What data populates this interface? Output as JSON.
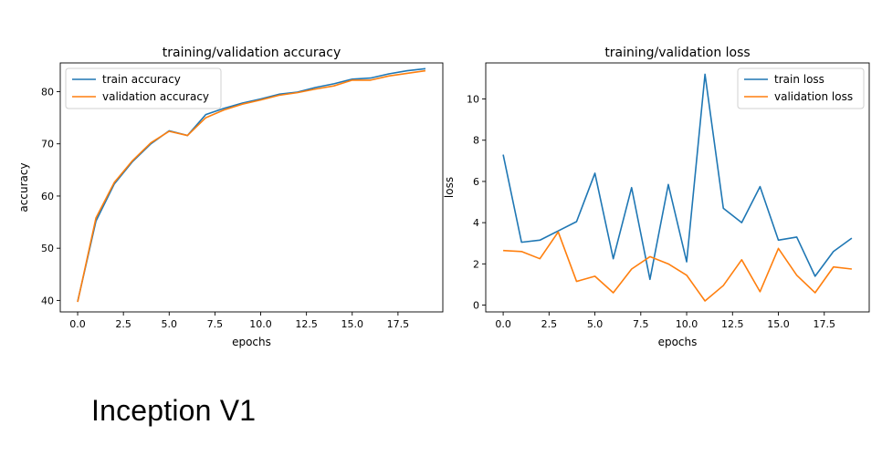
{
  "chart_data": [
    {
      "type": "line",
      "title": "training/validation accuracy",
      "xlabel": "epochs",
      "ylabel": "accuracy",
      "x": [
        0,
        1,
        2,
        3,
        4,
        5,
        6,
        7,
        8,
        9,
        10,
        11,
        12,
        13,
        14,
        15,
        16,
        17,
        18,
        19
      ],
      "xlim": [
        -0.95,
        19.95
      ],
      "ylim": [
        37.8,
        85.5
      ],
      "xticks": [
        0.0,
        2.5,
        5.0,
        7.5,
        10.0,
        12.5,
        15.0,
        17.5
      ],
      "xtick_labels": [
        "0.0",
        "2.5",
        "5.0",
        "7.5",
        "10.0",
        "12.5",
        "15.0",
        "17.5"
      ],
      "yticks": [
        40,
        50,
        60,
        70,
        80
      ],
      "ytick_labels": [
        "40",
        "50",
        "60",
        "70",
        "80"
      ],
      "legend_position": "top-left",
      "series": [
        {
          "name": "train accuracy",
          "color": "#1f77b4",
          "values": [
            39.8,
            55.2,
            62.3,
            66.6,
            70.0,
            72.5,
            71.6,
            75.6,
            76.8,
            77.8,
            78.6,
            79.5,
            79.9,
            80.8,
            81.5,
            82.4,
            82.6,
            83.4,
            84.0,
            84.4
          ]
        },
        {
          "name": "validation accuracy",
          "color": "#ff7f0e",
          "values": [
            39.7,
            55.8,
            62.6,
            66.8,
            70.2,
            72.4,
            71.6,
            75.0,
            76.5,
            77.6,
            78.4,
            79.3,
            79.8,
            80.5,
            81.1,
            82.2,
            82.2,
            83.0,
            83.5,
            84.0
          ]
        }
      ]
    },
    {
      "type": "line",
      "title": "training/validation loss",
      "xlabel": "epochs",
      "ylabel": "loss",
      "x": [
        0,
        1,
        2,
        3,
        4,
        5,
        6,
        7,
        8,
        9,
        10,
        11,
        12,
        13,
        14,
        15,
        16,
        17,
        18,
        19
      ],
      "xlim": [
        -0.95,
        19.95
      ],
      "ylim": [
        -0.33,
        11.75
      ],
      "xticks": [
        0.0,
        2.5,
        5.0,
        7.5,
        10.0,
        12.5,
        15.0,
        17.5
      ],
      "xtick_labels": [
        "0.0",
        "2.5",
        "5.0",
        "7.5",
        "10.0",
        "12.5",
        "15.0",
        "17.5"
      ],
      "yticks": [
        0,
        2,
        4,
        6,
        8,
        10
      ],
      "ytick_labels": [
        "0",
        "2",
        "4",
        "6",
        "8",
        "10"
      ],
      "legend_position": "top-right",
      "series": [
        {
          "name": "train loss",
          "color": "#1f77b4",
          "values": [
            7.3,
            3.05,
            3.15,
            3.6,
            4.05,
            6.4,
            2.25,
            5.7,
            1.25,
            5.85,
            2.1,
            11.2,
            4.7,
            4.0,
            5.75,
            3.15,
            3.3,
            1.4,
            2.6,
            3.25
          ]
        },
        {
          "name": "validation loss",
          "color": "#ff7f0e",
          "values": [
            2.65,
            2.6,
            2.25,
            3.55,
            1.15,
            1.4,
            0.6,
            1.75,
            2.35,
            2.0,
            1.45,
            0.2,
            0.95,
            2.2,
            0.65,
            2.75,
            1.45,
            0.6,
            1.85,
            1.75
          ]
        }
      ]
    }
  ],
  "caption": "Inception  V1"
}
